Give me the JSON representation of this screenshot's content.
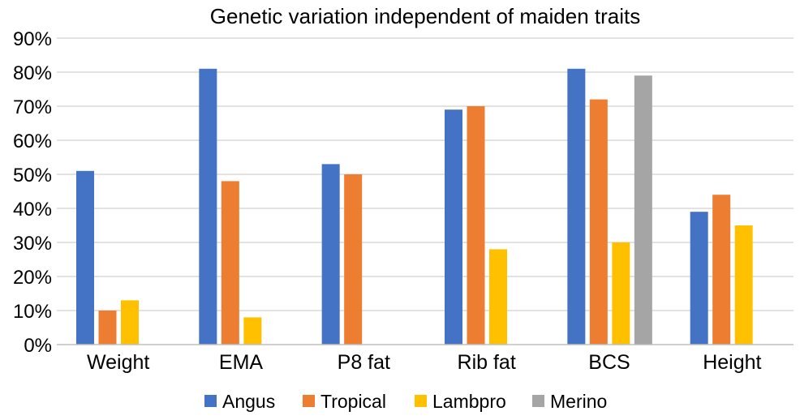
{
  "chart_data": {
    "type": "bar",
    "title": "Genetic variation independent of maiden traits",
    "xlabel": "",
    "ylabel": "",
    "ylim": [
      0,
      90
    ],
    "yticks": [
      0,
      10,
      20,
      30,
      40,
      50,
      60,
      70,
      80,
      90
    ],
    "ytick_suffix": "%",
    "grid": true,
    "legend_position": "bottom",
    "categories": [
      "Weight",
      "EMA",
      "P8 fat",
      "Rib fat",
      "BCS",
      "Height"
    ],
    "series": [
      {
        "name": "Angus",
        "color": "#4472c4",
        "values": [
          51,
          81,
          53,
          69,
          81,
          39
        ]
      },
      {
        "name": "Tropical",
        "color": "#ed7d31",
        "values": [
          10,
          48,
          50,
          70,
          72,
          44
        ]
      },
      {
        "name": "Lambpro",
        "color": "#ffc000",
        "values": [
          13,
          8,
          null,
          28,
          30,
          35
        ]
      },
      {
        "name": "Merino",
        "color": "#a5a5a5",
        "values": [
          null,
          null,
          null,
          null,
          79,
          null
        ]
      }
    ]
  }
}
